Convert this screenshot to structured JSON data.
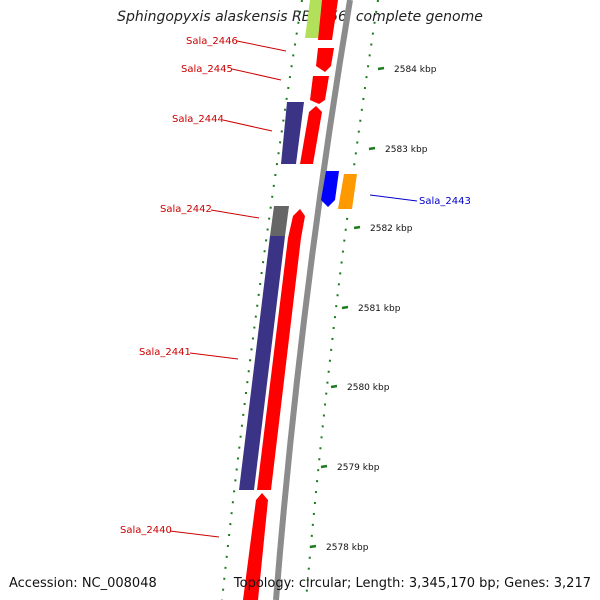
{
  "title": "Sphingopyxis alaskensis RB2256, complete genome",
  "accession": "Accession: NC_008048",
  "topology": "Topology: circular; Length: 3,345,170 bp; Genes: 3,217",
  "colors": {
    "forward": "#ff0000",
    "reverse": "#3b3486",
    "gray": "#666666",
    "blue": "#0000ff",
    "orange": "#ff9900",
    "green_dots": "#1d7a1d",
    "label_red": "#cc0000",
    "label_blue": "#0000cc"
  },
  "ticks": [
    {
      "label": "2584 kbp",
      "pos": 2584
    },
    {
      "label": "2583 kbp",
      "pos": 2583
    },
    {
      "label": "2582 kbp",
      "pos": 2582
    },
    {
      "label": "2581 kbp",
      "pos": 2581
    },
    {
      "label": "2580 kbp",
      "pos": 2580
    },
    {
      "label": "2579 kbp",
      "pos": 2579
    },
    {
      "label": "2578 kbp",
      "pos": 2578
    }
  ],
  "labels": [
    {
      "name": "Sala_2446",
      "color": "red"
    },
    {
      "name": "Sala_2445",
      "color": "red"
    },
    {
      "name": "Sala_2444",
      "color": "red"
    },
    {
      "name": "Sala_2443",
      "color": "blue"
    },
    {
      "name": "Sala_2442",
      "color": "red"
    },
    {
      "name": "Sala_2441",
      "color": "red"
    },
    {
      "name": "Sala_2440",
      "color": "red"
    }
  ]
}
